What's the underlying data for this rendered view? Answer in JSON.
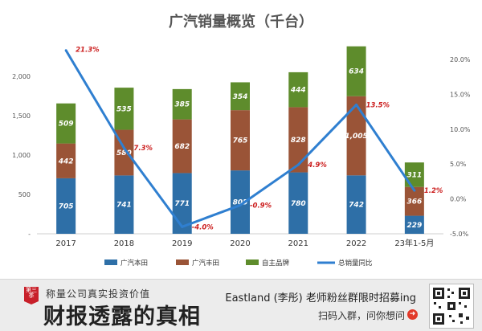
{
  "chart_data": {
    "type": "bar",
    "title": "广汽销量概览（千台）",
    "categories": [
      "2017",
      "2018",
      "2019",
      "2020",
      "2021",
      "2022",
      "23年1-5月"
    ],
    "series": [
      {
        "name": "广汽本田",
        "kind": "stacked-bar",
        "color": "#2e6fa7",
        "values": [
          705,
          741,
          771,
          805,
          780,
          742,
          229
        ]
      },
      {
        "name": "广汽丰田",
        "kind": "stacked-bar",
        "color": "#9a5437",
        "values": [
          442,
          580,
          682,
          765,
          828,
          1005,
          366
        ]
      },
      {
        "name": "自主品牌",
        "kind": "stacked-bar",
        "color": "#5e8c2c",
        "values": [
          509,
          535,
          385,
          354,
          444,
          634,
          311
        ]
      },
      {
        "name": "总销量同比",
        "kind": "line",
        "axis": "right",
        "color": "#2f7fd0",
        "values": [
          21.3,
          7.3,
          -4.0,
          -0.9,
          4.9,
          13.5,
          1.2
        ],
        "labels": [
          "21.3%",
          "7.3%",
          "-4.0%",
          "-0.9%",
          "4.9%",
          "13.5%",
          "1.2%"
        ]
      }
    ],
    "left_axis": {
      "min": 0,
      "max": 2500,
      "ticks": [
        0,
        500,
        1000,
        1500,
        2000
      ],
      "tick_labels": [
        "-",
        "500",
        "1,000",
        "1,500",
        "2,000"
      ]
    },
    "right_axis": {
      "min": -5,
      "max": 20,
      "ticks": [
        -5,
        0,
        5,
        10,
        15,
        20
      ],
      "tick_labels": [
        "-5.0%",
        "0.0%",
        "5.0%",
        "10.0%",
        "15.0%",
        "20.0%"
      ]
    },
    "grid": false,
    "legend_position": "bottom",
    "bar_label_color": "#ffffff",
    "line_label_color": "#cc1f1f"
  },
  "footer": {
    "badge": "第三季",
    "tagline": "称量公司真实投资价值",
    "title": "财报透露的真相",
    "promo": "Eastland (李彤) 老师粉丝群限时招募ing",
    "cta": "扫码入群，问你想问",
    "cta_icon": "arrow-right-icon",
    "qr_icon": "qr-code-icon",
    "accent_color": "#c8202a"
  }
}
